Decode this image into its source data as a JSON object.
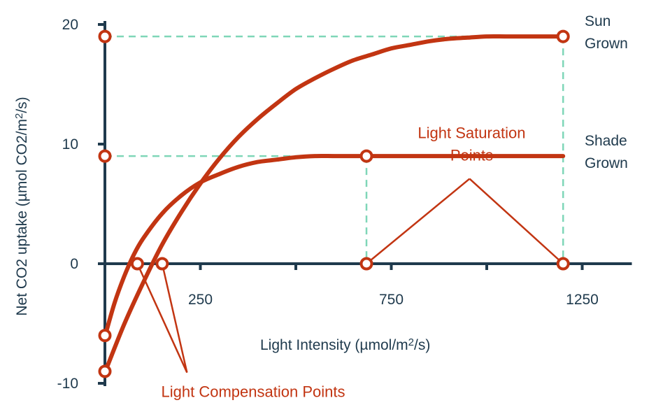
{
  "chart_data": {
    "type": "line",
    "xlabel_text": "Light Intensity",
    "xlabel_unit_pre": "(µmol/m",
    "xlabel_unit_sup": "2",
    "xlabel_unit_post": "/s)",
    "ylabel_text": "Net CO2 uptake",
    "ylabel_unit_pre": "(µmol CO2/m",
    "ylabel_unit_sup": "2",
    "ylabel_unit_post": "/s)",
    "xlim": [
      0,
      1380
    ],
    "ylim": [
      -10,
      20
    ],
    "x_ticks": [
      250,
      750,
      1250
    ],
    "x_tick_labels": [
      "250",
      "750",
      "1250"
    ],
    "x_minor_ticks": [
      250,
      500,
      750,
      1000,
      1250
    ],
    "y_ticks": [
      20,
      10,
      0,
      -10
    ],
    "y_tick_labels": [
      "20",
      "10",
      "0",
      "-10"
    ],
    "grid": false,
    "series": [
      {
        "name_lines": [
          "Sun",
          "Grown"
        ],
        "x": [
          0,
          50,
          100,
          150,
          200,
          250,
          300,
          350,
          400,
          450,
          500,
          550,
          600,
          650,
          700,
          750,
          800,
          850,
          900,
          950,
          1000,
          1050,
          1100,
          1150,
          1200
        ],
        "y": [
          -9.1,
          -5.1,
          -1.6,
          1.6,
          4.3,
          6.7,
          8.8,
          10.6,
          12.1,
          13.4,
          14.6,
          15.5,
          16.3,
          17.0,
          17.5,
          18.0,
          18.3,
          18.6,
          18.8,
          18.9,
          19.0,
          19.0,
          19.0,
          19.0,
          19.0
        ],
        "color": "#c23512"
      },
      {
        "name_lines": [
          "Shade",
          "Grown"
        ],
        "x": [
          0,
          25,
          50,
          75,
          100,
          150,
          200,
          250,
          300,
          350,
          400,
          450,
          500,
          550,
          600,
          650,
          700,
          750,
          800,
          900,
          1000,
          1100,
          1200
        ],
        "y": [
          -6.1,
          -3.3,
          -1.1,
          0.7,
          2.1,
          4.2,
          5.7,
          6.8,
          7.5,
          8.1,
          8.5,
          8.7,
          8.9,
          9.0,
          9.0,
          9.0,
          9.0,
          9.0,
          9.0,
          9.0,
          9.0,
          9.0,
          9.0
        ],
        "color": "#c23512"
      }
    ],
    "points": [
      {
        "x": 0,
        "y": 19
      },
      {
        "x": 0,
        "y": 9
      },
      {
        "x": 0,
        "y": -6
      },
      {
        "x": 0,
        "y": -9
      },
      {
        "x": 85,
        "y": 0
      },
      {
        "x": 150,
        "y": 0
      },
      {
        "x": 685,
        "y": 9
      },
      {
        "x": 685,
        "y": 0
      },
      {
        "x": 1200,
        "y": 19
      },
      {
        "x": 1200,
        "y": 0
      }
    ],
    "guides": [
      {
        "from": [
          0,
          19
        ],
        "to": [
          1200,
          19
        ]
      },
      {
        "from": [
          1200,
          19
        ],
        "to": [
          1200,
          0
        ]
      },
      {
        "from": [
          0,
          9
        ],
        "to": [
          685,
          9
        ]
      },
      {
        "from": [
          685,
          9
        ],
        "to": [
          685,
          0
        ]
      }
    ],
    "annotations": [
      {
        "lines": [
          "Light Saturation",
          "Points"
        ],
        "anchor": [
          955,
          7.1
        ],
        "targets": [
          [
            685,
            0
          ],
          [
            1200,
            0
          ]
        ],
        "color": "#c23512"
      },
      {
        "lines": [
          "Light Compensation Points"
        ],
        "anchor": [
          215,
          -9.1
        ],
        "targets": [
          [
            85,
            0
          ],
          [
            150,
            0
          ]
        ],
        "color": "#c23512"
      }
    ],
    "colors": {
      "axis": "#1f3a4d",
      "curve": "#c23512",
      "guide": "#7fd6b8",
      "marker_fill": "#ffffff"
    }
  }
}
